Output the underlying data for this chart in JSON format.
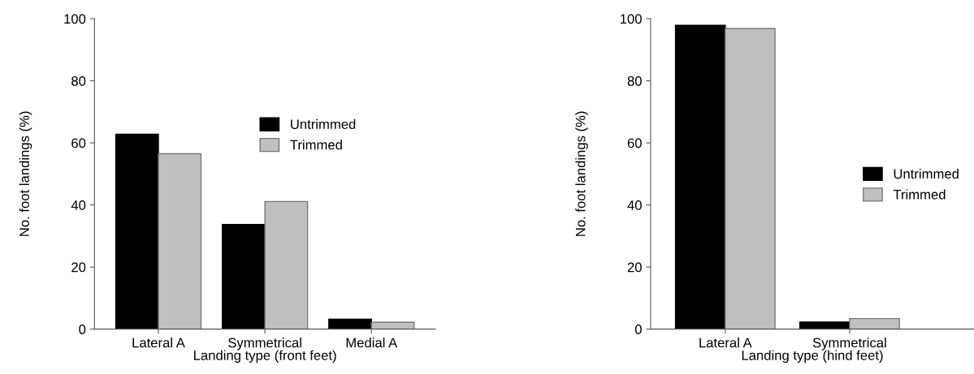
{
  "chart_data": [
    {
      "type": "bar",
      "categories": [
        "Lateral A",
        "Symmetrical",
        "Medial A"
      ],
      "xlabel": "Landing type (front feet)",
      "ylabel": "No. foot landings (%)",
      "ylim": [
        0,
        100
      ],
      "yticks": [
        0,
        20,
        40,
        60,
        80,
        100
      ],
      "legend": "top right",
      "grid": false,
      "series": [
        {
          "name": "Untrimmed",
          "color": "#000000",
          "values": [
            62.8,
            33.7,
            3.2
          ]
        },
        {
          "name": "Trimmed",
          "color": "#c0c0c0",
          "values": [
            56.5,
            41.1,
            2.2
          ]
        }
      ]
    },
    {
      "type": "bar",
      "categories": [
        "Lateral A",
        "Symmetrical"
      ],
      "xlabel": "Landing type (hind feet)",
      "ylabel": "No. foot landings (%)",
      "ylim": [
        0,
        100
      ],
      "yticks": [
        0,
        20,
        40,
        60,
        80,
        100
      ],
      "legend": "right",
      "grid": false,
      "series": [
        {
          "name": "Untrimmed",
          "color": "#000000",
          "values": [
            97.9,
            2.3
          ]
        },
        {
          "name": "Trimmed",
          "color": "#c0c0c0",
          "values": [
            96.8,
            3.4
          ]
        }
      ]
    }
  ]
}
